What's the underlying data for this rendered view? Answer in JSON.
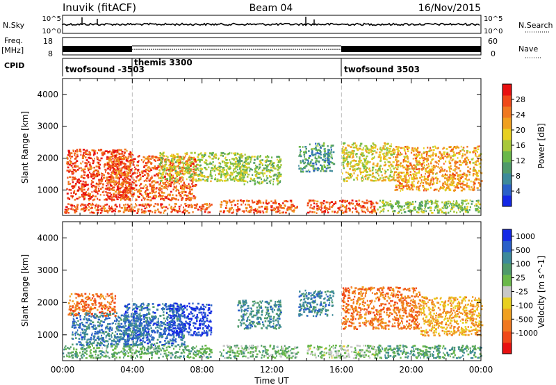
{
  "header": {
    "station": "Inuvik (fitACF)",
    "beam": "Beam 04",
    "date": "16/Nov/2015"
  },
  "top_panels": {
    "nsky_label": "N.Sky",
    "nsky_ticks": [
      "10^5",
      "10^0"
    ],
    "nsearch_label": "N.Search",
    "nsearch_ticks": [
      "10^5",
      "10^0"
    ],
    "freq_label": "Freq.",
    "freq_unit": "[MHz]",
    "freq_ticks": [
      "8",
      "18"
    ],
    "nave_label": "Nave",
    "nave_ticks": [
      "60",
      "0"
    ],
    "cpid_label": "CPID",
    "cpid_segments": [
      {
        "name": "twofsound -3503",
        "start_hour": 0,
        "end_hour": 4
      },
      {
        "name": "themis 3300",
        "start_hour": 4,
        "end_hour": 16
      },
      {
        "name": "twofsound 3503",
        "start_hour": 16,
        "end_hour": 24
      }
    ]
  },
  "chart_data": [
    {
      "type": "heatmap",
      "title": "",
      "parameter": "Power",
      "xlabel": "",
      "ylabel": "Slant Range [km]",
      "xlim_hours": [
        0,
        24
      ],
      "ylim_km": [
        200,
        4500
      ],
      "yticks": [
        1000,
        2000,
        3000,
        4000
      ],
      "colorbar": {
        "label": "Power [dB]",
        "ticks": [
          4,
          8,
          12,
          16,
          20,
          24,
          28
        ],
        "range": [
          0,
          32
        ],
        "colors": [
          "#1428e6",
          "#2a60c8",
          "#3d8a9a",
          "#4f9a6a",
          "#6ab84a",
          "#a8c83a",
          "#e8d020",
          "#f0a020",
          "#f07820",
          "#f04818",
          "#e81010"
        ]
      },
      "markers_hours": [
        4,
        16
      ],
      "regions": [
        {
          "t0": 0.2,
          "t1": 4.0,
          "r0": 700,
          "r1": 2300,
          "v": 28
        },
        {
          "t0": 2.5,
          "t1": 7.6,
          "r0": 700,
          "r1": 2100,
          "v": 26
        },
        {
          "t0": 0.0,
          "t1": 8.5,
          "r0": 300,
          "r1": 600,
          "v": 27
        },
        {
          "t0": 5.5,
          "t1": 10.5,
          "r0": 1300,
          "r1": 2200,
          "v": 16
        },
        {
          "t0": 9.0,
          "t1": 13.5,
          "r0": 300,
          "r1": 700,
          "v": 26
        },
        {
          "t0": 10.0,
          "t1": 12.5,
          "r0": 1200,
          "r1": 2100,
          "v": 14
        },
        {
          "t0": 13.5,
          "t1": 15.5,
          "r0": 1600,
          "r1": 2500,
          "v": 10
        },
        {
          "t0": 14.0,
          "t1": 18.0,
          "r0": 300,
          "r1": 700,
          "v": 27
        },
        {
          "t0": 16.0,
          "t1": 19.0,
          "r0": 1300,
          "r1": 2500,
          "v": 18
        },
        {
          "t0": 19.0,
          "t1": 24.0,
          "r0": 1000,
          "r1": 2400,
          "v": 22
        },
        {
          "t0": 18.0,
          "t1": 24.0,
          "r0": 300,
          "r1": 700,
          "v": 14
        }
      ]
    },
    {
      "type": "heatmap",
      "title": "",
      "parameter": "Velocity",
      "xlabel": "Time UT",
      "ylabel": "Slant Range [km]",
      "xlim_hours": [
        0,
        24
      ],
      "ylim_km": [
        200,
        4500
      ],
      "yticks": [
        1000,
        2000,
        3000,
        4000
      ],
      "xticks": [
        "00:00",
        "04:00",
        "08:00",
        "12:00",
        "16:00",
        "20:00",
        "00:00"
      ],
      "colorbar": {
        "label": "Velocity [m s^-1]",
        "ticks": [
          "-1000",
          "-500",
          "-100",
          "-25",
          "25",
          "100",
          "500",
          "1000"
        ],
        "colors": [
          "#e81010",
          "#f04818",
          "#f07820",
          "#f0a020",
          "#e8d020",
          "#c8c8c8",
          "#6ab84a",
          "#4f9a6a",
          "#3d8a9a",
          "#2a60c8",
          "#1428e6"
        ]
      },
      "markers_hours": [
        4,
        16
      ],
      "regions": [
        {
          "t0": 0.3,
          "t1": 3.0,
          "r0": 1600,
          "r1": 2300,
          "v": -0.6
        },
        {
          "t0": 0.5,
          "t1": 5.0,
          "r0": 700,
          "r1": 1700,
          "v": 0.6
        },
        {
          "t0": 3.5,
          "t1": 7.0,
          "r0": 700,
          "r1": 2000,
          "v": 0.65
        },
        {
          "t0": 6.0,
          "t1": 8.5,
          "r0": 1000,
          "r1": 2000,
          "v": 0.85
        },
        {
          "t0": 0.0,
          "t1": 8.5,
          "r0": 300,
          "r1": 700,
          "v": 0.3
        },
        {
          "t0": 9.0,
          "t1": 13.5,
          "r0": 300,
          "r1": 700,
          "v": 0.25
        },
        {
          "t0": 10.0,
          "t1": 12.5,
          "r0": 1200,
          "r1": 2100,
          "v": 0.5
        },
        {
          "t0": 13.5,
          "t1": 15.5,
          "r0": 1600,
          "r1": 2400,
          "v": 0.55
        },
        {
          "t0": 14.0,
          "t1": 18.0,
          "r0": 300,
          "r1": 700,
          "v": 0.1
        },
        {
          "t0": 16.0,
          "t1": 20.5,
          "r0": 1200,
          "r1": 2500,
          "v": -0.55
        },
        {
          "t0": 20.5,
          "t1": 24.0,
          "r0": 1000,
          "r1": 2200,
          "v": -0.35
        },
        {
          "t0": 18.0,
          "t1": 24.0,
          "r0": 300,
          "r1": 700,
          "v": 0.35
        }
      ]
    }
  ]
}
